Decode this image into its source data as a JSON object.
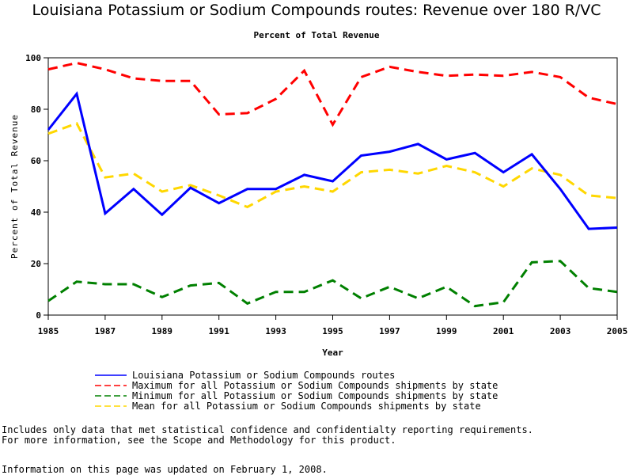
{
  "chart_data": {
    "type": "line",
    "title": "Louisiana Potassium or Sodium Compounds routes: Revenue over 180 R/VC",
    "subtitle": "Percent of Total Revenue",
    "xlabel": "Year",
    "ylabel": "Percent of Total Revenue",
    "xlim": [
      1985,
      2005
    ],
    "ylim": [
      0,
      100
    ],
    "xticks": [
      "1985",
      "1987",
      "1989",
      "1991",
      "1993",
      "1995",
      "1997",
      "1999",
      "2001",
      "2003",
      "2005"
    ],
    "yticks": [
      "0",
      "20",
      "40",
      "60",
      "80",
      "100"
    ],
    "x": [
      1985,
      1986,
      1987,
      1988,
      1989,
      1990,
      1991,
      1992,
      1993,
      1994,
      1995,
      1996,
      1997,
      1998,
      1999,
      2000,
      2001,
      2002,
      2003,
      2004,
      2005
    ],
    "series": [
      {
        "name": "Louisiana Potassium or Sodium Compounds routes",
        "color": "#0000ff",
        "dash": "solid",
        "values": [
          72,
          86,
          39.5,
          49,
          39,
          49.5,
          43.5,
          49,
          49,
          54.5,
          52,
          62,
          63.5,
          66.5,
          60.5,
          63,
          55.5,
          62.5,
          49,
          33.5,
          34
        ]
      },
      {
        "name": "Maximum for all Potassium or Sodium Compounds shipments by state",
        "color": "#ff0000",
        "dash": "dashed",
        "values": [
          95.5,
          98,
          95.5,
          92,
          91,
          91,
          78,
          78.5,
          84,
          95,
          74,
          92.5,
          96.5,
          94.5,
          93,
          93.5,
          93,
          94.5,
          92.5,
          84.5,
          82
        ]
      },
      {
        "name": "Minimum for all Potassium or Sodium Compounds shipments by state",
        "color": "#008000",
        "dash": "dashed",
        "values": [
          5.5,
          13,
          12,
          12,
          7,
          11.5,
          12.5,
          4.5,
          9,
          9,
          13.5,
          6.5,
          11,
          6.5,
          11,
          3.5,
          5,
          20.5,
          21,
          10.5,
          9
        ]
      },
      {
        "name": "Mean for all Potassium or Sodium Compounds shipments by state",
        "color": "#ffd700",
        "dash": "dashed",
        "values": [
          70.5,
          74.5,
          53.5,
          55,
          48,
          50.5,
          46.5,
          42,
          48,
          50,
          48,
          55.5,
          56.5,
          55,
          58,
          55.5,
          50,
          57,
          54.5,
          46.5,
          45.5
        ]
      }
    ],
    "grid": false,
    "legend_position": "bottom"
  },
  "notes": [
    "Includes only data that met statistical confidence and confidentialty reporting requirements.",
    "For more information, see the Scope and Methodology for this product.",
    "Information on this page was updated on February 1, 2008."
  ]
}
